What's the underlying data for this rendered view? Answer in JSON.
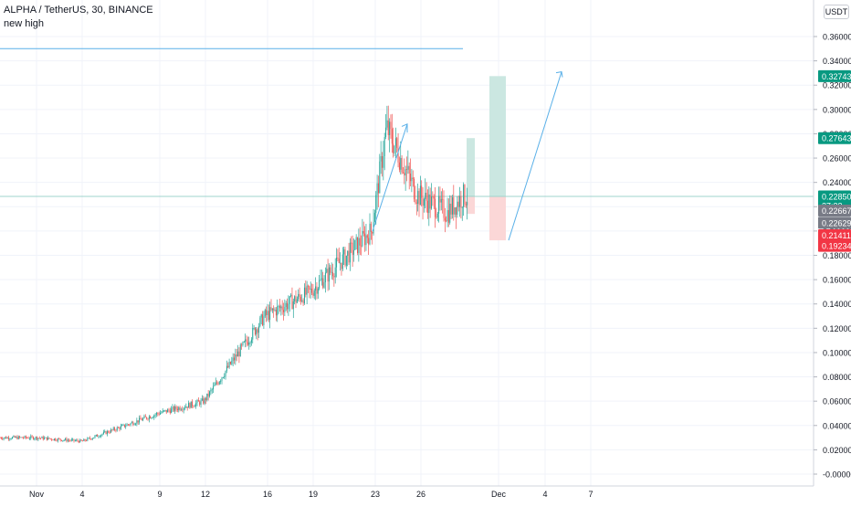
{
  "header": {
    "symbol_line": "ALPHA / TetherUS, 30, BINANCE",
    "note": "new high"
  },
  "currency_label": "USDT",
  "colors": {
    "up": "#26a69a",
    "down": "#ef5350",
    "line": "#5ab0e8",
    "axis_text": "#131722",
    "target_zone": "#c8e6df",
    "stop_zone": "#fbd5d5"
  },
  "price_badges": [
    {
      "label": "0.32743",
      "value": 0.32743,
      "color": "#089981"
    },
    {
      "label": "0.27643",
      "value": 0.27643,
      "color": "#089981"
    },
    {
      "label": "0.22850",
      "value": 0.2285,
      "color": "#089981"
    },
    {
      "label": "27:33",
      "value": 0.2209,
      "color": "#089981"
    },
    {
      "label": "0.22667",
      "value": 0.2168,
      "color": "#787b86"
    },
    {
      "label": "0.22629",
      "value": 0.2068,
      "color": "#787b86"
    },
    {
      "label": "0.21411",
      "value": 0.1965,
      "color": "#f23645"
    },
    {
      "label": "0.19234",
      "value": 0.1878,
      "color": "#f23645"
    }
  ],
  "chart_data": {
    "type": "candlestick",
    "x_ticks": [
      "Nov",
      "4",
      "9",
      "12",
      "16",
      "19",
      "23",
      "26",
      "Dec",
      "4",
      "7"
    ],
    "y_ticks": [
      "-0.00000",
      "0.02000",
      "0.04000",
      "0.06000",
      "0.08000",
      "0.10000",
      "0.12000",
      "0.14000",
      "0.16000",
      "0.18000",
      "0.20000",
      "0.22000",
      "0.24000",
      "0.26000",
      "0.28000",
      "0.30000",
      "0.32000",
      "0.34000",
      "0.36000"
    ],
    "ylim": [
      -0.002,
      0.385
    ],
    "price_path_approx": [
      {
        "x": "Nov",
        "y": 0.03
      },
      {
        "x": "4",
        "y": 0.027
      },
      {
        "x": "9",
        "y": 0.05
      },
      {
        "x": "12",
        "y": 0.06
      },
      {
        "x": "16",
        "y": 0.13
      },
      {
        "x": "19",
        "y": 0.15
      },
      {
        "x": "23",
        "y": 0.2
      },
      {
        "x": "24",
        "y": 0.285
      },
      {
        "x": "26",
        "y": 0.23
      },
      {
        "x": "28",
        "y": 0.215
      },
      {
        "x": "29",
        "y": 0.2285
      }
    ],
    "horizontal_lines": [
      0.35,
      0.2285
    ],
    "position_zones": [
      {
        "entry": 0.2285,
        "target": 0.27643,
        "stop": 0.21411
      },
      {
        "entry": 0.2285,
        "target": 0.32743,
        "stop": 0.19234
      }
    ],
    "projection_arrow": {
      "from": 0.19234,
      "to": 0.331
    }
  }
}
